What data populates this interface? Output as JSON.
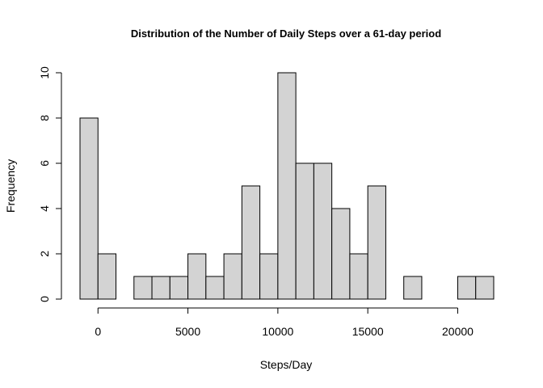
{
  "chart_data": {
    "type": "bar",
    "title": "Distribution of the Number of Daily Steps over a 61-day period",
    "xlabel": "Steps/Day",
    "ylabel": "Frequency",
    "bin_width": 1000,
    "bins_start": [
      -1000,
      0,
      1000,
      2000,
      3000,
      4000,
      5000,
      6000,
      7000,
      8000,
      9000,
      10000,
      11000,
      12000,
      13000,
      14000,
      15000,
      16000,
      17000,
      18000,
      19000,
      20000,
      21000
    ],
    "values": [
      8,
      2,
      0,
      1,
      1,
      1,
      2,
      1,
      2,
      5,
      2,
      10,
      6,
      6,
      4,
      2,
      5,
      0,
      1,
      0,
      0,
      1,
      1
    ],
    "xlim": [
      -1000,
      22000
    ],
    "ylim": [
      0,
      10
    ],
    "xticks": [
      0,
      5000,
      10000,
      15000,
      20000
    ],
    "xtick_labels": [
      "0",
      "5000",
      "10000",
      "15000",
      "20000"
    ],
    "yticks": [
      0,
      2,
      4,
      6,
      8,
      10
    ],
    "ytick_labels": [
      "0",
      "2",
      "4",
      "6",
      "8",
      "10"
    ],
    "bar_color": "#d3d3d3",
    "edge_color": "#000000",
    "grid": false,
    "legend": "none"
  }
}
